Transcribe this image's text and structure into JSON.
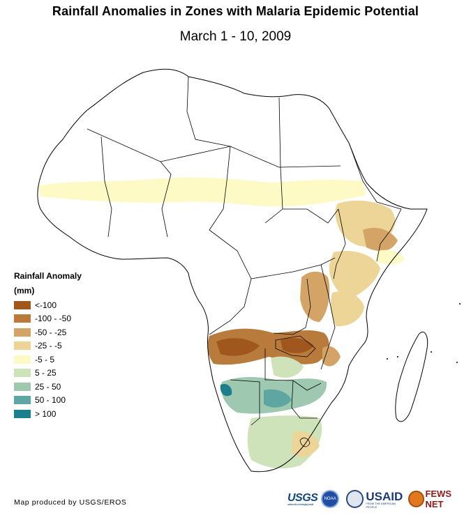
{
  "title": "Rainfall Anomalies in Zones with Malaria Epidemic Potential",
  "subtitle": "March 1 - 10, 2009",
  "legend": {
    "title": "Rainfall Anomaly",
    "unit": "(mm)",
    "classes": [
      {
        "label": "<-100",
        "color": "#a0571e"
      },
      {
        "label": "-100 - -50",
        "color": "#b87b3c"
      },
      {
        "label": "-50 - -25",
        "color": "#d3a465"
      },
      {
        "label": "-25 - -5",
        "color": "#ecd596"
      },
      {
        "label": "-5 - 5",
        "color": "#fdfac6"
      },
      {
        "label": "5 - 25",
        "color": "#cfe3bb"
      },
      {
        "label": "25 - 50",
        "color": "#9ec8b0"
      },
      {
        "label": "50 - 100",
        "color": "#5fa6a2"
      },
      {
        "label": "> 100",
        "color": "#1d7f8c"
      }
    ]
  },
  "credit": "Map produced by USGS/EROS",
  "logos": {
    "usgs": "USGS",
    "usgs_tagline": "science for a changing world",
    "noaa": "NOAA",
    "usaid": "USAID",
    "usaid_tagline": "FROM THE AMERICAN PEOPLE",
    "fews": "FEWS NET"
  }
}
